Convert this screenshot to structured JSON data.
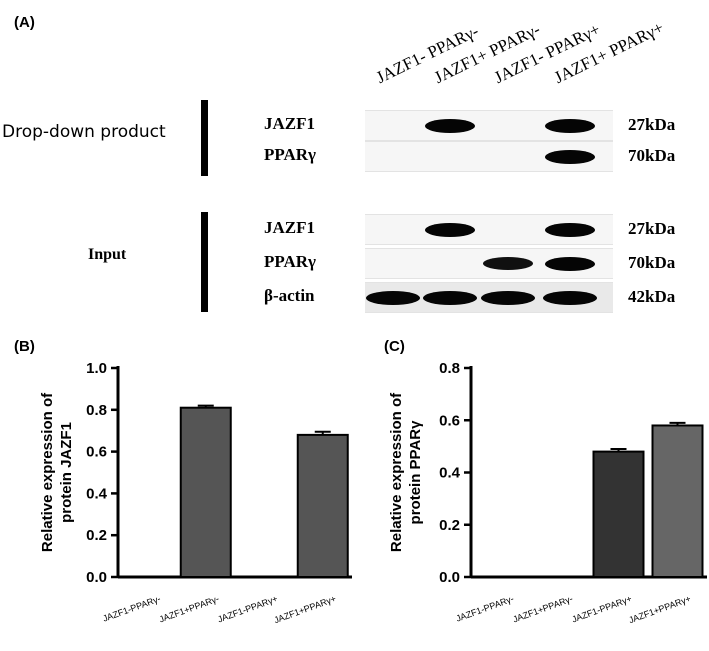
{
  "panels": {
    "a": "(A)",
    "b": "(B)",
    "c": "(C)"
  },
  "lanes": [
    "JAZF1- PPARγ-",
    "JAZF1+ PPARγ-",
    "JAZF1- PPARγ+",
    "JAZF1+ PPARγ+"
  ],
  "sections": {
    "dropdown": "Drop-down product",
    "input": "Input"
  },
  "blot": {
    "rows": [
      {
        "label": "JAZF1",
        "kda": "27kDa",
        "intensity": [
          0,
          1,
          0,
          1
        ]
      },
      {
        "label": "PPARγ",
        "kda": "70kDa",
        "intensity": [
          0,
          0,
          0,
          1
        ]
      },
      {
        "label": "JAZF1",
        "kda": "27kDa",
        "intensity": [
          0,
          1,
          0,
          1
        ]
      },
      {
        "label": "PPARγ",
        "kda": "70kDa",
        "intensity": [
          0,
          0,
          0.8,
          1
        ]
      },
      {
        "label": "β-actin",
        "kda": "42kDa",
        "intensity": [
          1,
          1,
          1,
          1
        ]
      }
    ]
  },
  "chart_data": [
    {
      "type": "bar",
      "categories": [
        "JAZF1-PPARγ-",
        "JAZF1+PPARγ-",
        "JAZF1-PPARγ+",
        "JAZF1+PPARγ+"
      ],
      "values": [
        0,
        0.81,
        0,
        0.68
      ],
      "errors": [
        0,
        0.01,
        0,
        0.015
      ],
      "ylabel": "Relative expression of protein JAZF1",
      "ylim": [
        0,
        1.0
      ],
      "yticks": [
        "0.0",
        "0.2",
        "0.4",
        "0.6",
        "0.8",
        "1.0"
      ],
      "colors": [
        "#555555",
        "#555555",
        "#555555",
        "#555555"
      ]
    },
    {
      "type": "bar",
      "categories": [
        "JAZF1-PPARγ-",
        "JAZF1+PPARγ-",
        "JAZF1-PPARγ+",
        "JAZF1+PPARγ+"
      ],
      "values": [
        0,
        0,
        0.48,
        0.58
      ],
      "errors": [
        0,
        0,
        0.01,
        0.01
      ],
      "ylabel": "Relative expression of protein PPARγ",
      "ylim": [
        0,
        0.8
      ],
      "yticks": [
        "0.0",
        "0.2",
        "0.4",
        "0.6",
        "0.8"
      ],
      "colors": [
        "#333333",
        "#333333",
        "#333333",
        "#666666"
      ]
    }
  ]
}
